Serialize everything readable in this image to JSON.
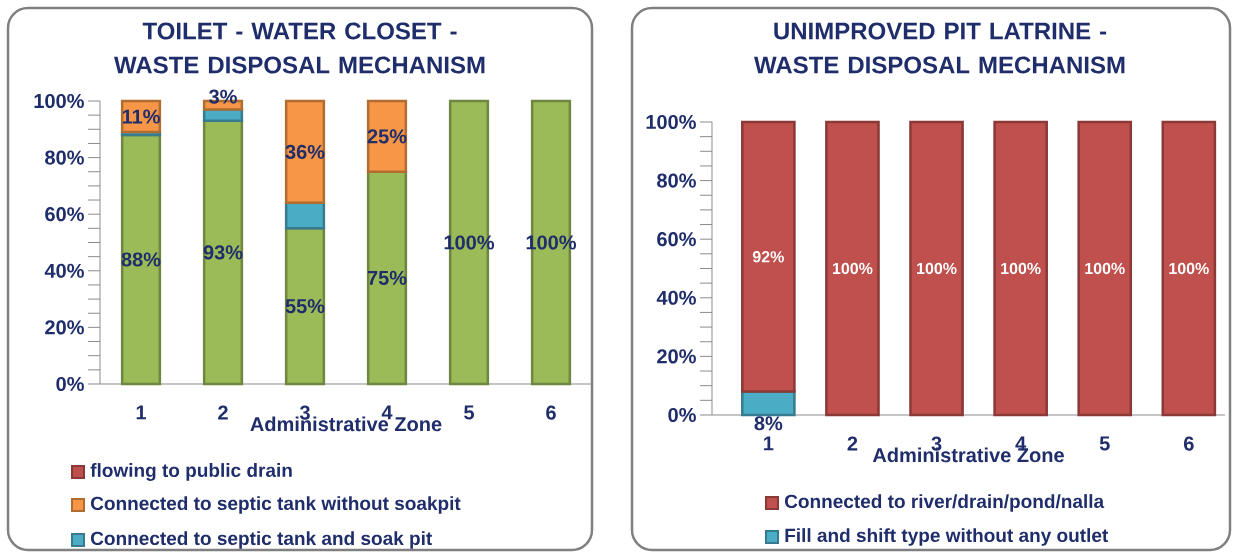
{
  "chart_data": [
    {
      "type": "bar",
      "stacked": true,
      "title": "TOILET - WATER CLOSET - WASTE DISPOSAL MECHANISM",
      "xlabel": "Administrative Zone",
      "categories": [
        "1",
        "2",
        "3",
        "4",
        "5",
        "6"
      ],
      "ylim": [
        0,
        100
      ],
      "yticks": [
        {
          "value": 0,
          "label": "0%"
        },
        {
          "value": 20,
          "label": "20%"
        },
        {
          "value": 40,
          "label": "40%"
        },
        {
          "value": 60,
          "label": "60%"
        },
        {
          "value": 80,
          "label": "80%"
        },
        {
          "value": 100,
          "label": "100%"
        }
      ],
      "legend": "bottom",
      "series": [
        {
          "color": "#9bbb59",
          "values": [
            88,
            93,
            55,
            75,
            100,
            100
          ],
          "value_labels": [
            "88%",
            "93%",
            "55%",
            "75%",
            "100%",
            "100%"
          ]
        },
        {
          "name": "Connected to septic tank and soak pit",
          "color": "#4bacc6",
          "values": [
            1,
            4,
            9,
            null,
            null,
            null
          ],
          "value_labels": [
            null,
            null,
            null,
            null,
            null,
            null
          ]
        },
        {
          "name": "Connected to septic tank without soakpit",
          "color": "#f79646",
          "values": [
            11,
            3,
            36,
            25,
            null,
            null
          ],
          "value_labels": [
            "11%",
            "3%",
            "36%",
            "25%",
            null,
            null
          ]
        },
        {
          "name": "flowing to public drain",
          "color": "#c0504d",
          "values": [
            0,
            0,
            0,
            0,
            0,
            0
          ],
          "value_labels": [
            null,
            null,
            null,
            null,
            null,
            null
          ]
        }
      ]
    },
    {
      "type": "bar",
      "stacked": true,
      "title": "UNIMPROVED PIT LATRINE - WASTE DISPOSAL MECHANISM",
      "xlabel": "Administrative Zone",
      "categories": [
        "1",
        "2",
        "3",
        "4",
        "5",
        "6"
      ],
      "ylim": [
        0,
        100
      ],
      "yticks": [
        {
          "value": 0,
          "label": "0%"
        },
        {
          "value": 20,
          "label": "20%"
        },
        {
          "value": 40,
          "label": "40%"
        },
        {
          "value": 60,
          "label": "60%"
        },
        {
          "value": 80,
          "label": "80%"
        },
        {
          "value": 100,
          "label": "100%"
        }
      ],
      "legend": "bottom",
      "series": [
        {
          "name": "Fill and shift type without any outlet",
          "color": "#4bacc6",
          "values": [
            8,
            0,
            0,
            0,
            0,
            0
          ],
          "value_labels": [
            "8%",
            null,
            null,
            null,
            null,
            null
          ]
        },
        {
          "name": "Connected to river/drain/pond/nalla",
          "color": "#c0504d",
          "values": [
            92,
            100,
            100,
            100,
            100,
            100
          ],
          "value_labels": [
            "92%",
            "100%",
            "100%",
            "100%",
            "100%",
            "100%"
          ]
        }
      ]
    }
  ]
}
